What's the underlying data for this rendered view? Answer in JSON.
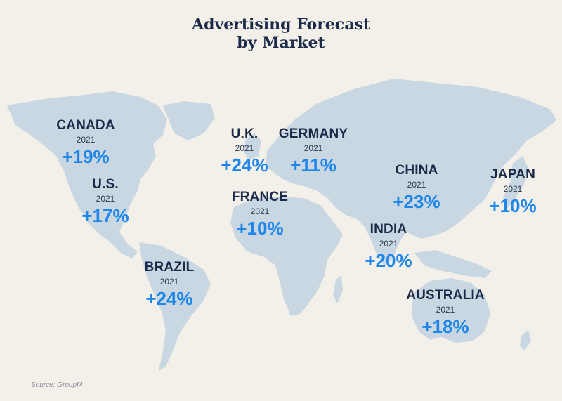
{
  "title_line1": "Advertising Forecast",
  "title_line2": "by Market",
  "source": "Source: GroupM",
  "colors": {
    "background": "#f2f0e8",
    "land": "#c9d7e2",
    "title": "#1c2a4a",
    "value": "#1e86e8"
  },
  "markets": [
    {
      "key": "canada",
      "name": "CANADA",
      "year": "2021",
      "value": "+19%"
    },
    {
      "key": "us",
      "name": "U.S.",
      "year": "2021",
      "value": "+17%"
    },
    {
      "key": "uk",
      "name": "U.K.",
      "year": "2021",
      "value": "+24%"
    },
    {
      "key": "germany",
      "name": "GERMANY",
      "year": "2021",
      "value": "+11%"
    },
    {
      "key": "france",
      "name": "FRANCE",
      "year": "2021",
      "value": "+10%"
    },
    {
      "key": "china",
      "name": "CHINA",
      "year": "2021",
      "value": "+23%"
    },
    {
      "key": "japan",
      "name": "JAPAN",
      "year": "2021",
      "value": "+10%"
    },
    {
      "key": "india",
      "name": "INDIA",
      "year": "2021",
      "value": "+20%"
    },
    {
      "key": "brazil",
      "name": "BRAZIL",
      "year": "2021",
      "value": "+24%"
    },
    {
      "key": "australia",
      "name": "AUSTRALIA",
      "year": "2021",
      "value": "+18%"
    }
  ]
}
